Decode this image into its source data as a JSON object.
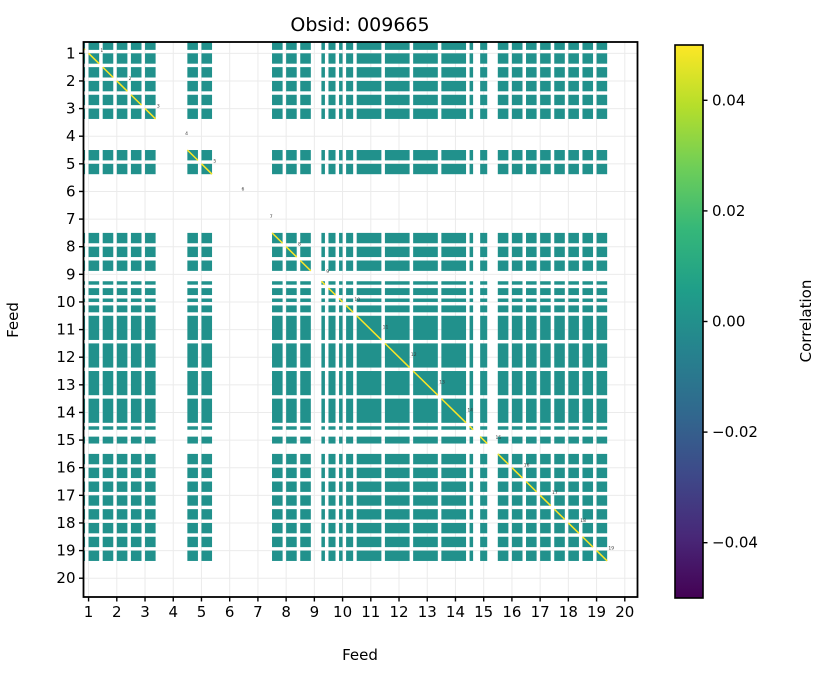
{
  "title": "Obsid: 009665",
  "xlabel": "Feed",
  "ylabel": "Feed",
  "x_tick_labels": [
    "1",
    "2",
    "3",
    "4",
    "5",
    "6",
    "7",
    "8",
    "9",
    "10",
    "11",
    "12",
    "13",
    "14",
    "15",
    "16",
    "17",
    "18",
    "19",
    "20"
  ],
  "y_tick_labels": [
    "1",
    "2",
    "3",
    "4",
    "5",
    "6",
    "7",
    "8",
    "9",
    "10",
    "11",
    "12",
    "13",
    "14",
    "15",
    "16",
    "17",
    "18",
    "19",
    "20"
  ],
  "colorbar": {
    "label": "Correlation",
    "vmin": -0.05,
    "vmax": 0.05,
    "tick_labels": [
      "0.04",
      "0.02",
      "0.00",
      "−0.02",
      "−0.04"
    ],
    "tick_values": [
      0.04,
      0.02,
      0.0,
      -0.02,
      -0.04
    ],
    "colormap": "viridis",
    "gradient_stops": [
      "#440154",
      "#482878",
      "#3e4989",
      "#31688e",
      "#26828e",
      "#1f9e89",
      "#35b779",
      "#6ece58",
      "#b5de2b",
      "#fde725"
    ]
  },
  "colors": {
    "cell": "#21918c",
    "diagonal": "#fde725",
    "grid": "#ebebeb",
    "spine": "#000000",
    "annotation": "#3a3a3a",
    "background": "#ffffff"
  },
  "chart_data": {
    "type": "heatmap",
    "title": "Obsid: 009665",
    "xlabel": "Feed",
    "ylabel": "Feed",
    "n_feeds": 20,
    "slots_per_feed": 8,
    "feed_annotations": [
      "1",
      "2",
      "3",
      "4",
      "5",
      "6",
      "7",
      "8",
      "9",
      "10",
      "11",
      "12",
      "13",
      "14",
      "15",
      "16",
      "17",
      "18",
      "19",
      "20"
    ],
    "feed_slot_masks": [
      [
        1,
        1,
        1,
        0,
        1,
        1,
        1,
        0
      ],
      [
        1,
        1,
        1,
        0,
        1,
        1,
        1,
        0
      ],
      [
        1,
        1,
        1,
        0,
        1,
        1,
        1,
        0
      ],
      [
        0,
        0,
        0,
        0,
        0,
        0,
        0,
        0
      ],
      [
        1,
        1,
        1,
        0,
        1,
        1,
        1,
        0
      ],
      [
        0,
        0,
        0,
        0,
        0,
        0,
        0,
        0
      ],
      [
        0,
        0,
        0,
        0,
        0,
        0,
        0,
        0
      ],
      [
        1,
        1,
        1,
        0,
        1,
        1,
        1,
        0
      ],
      [
        1,
        1,
        1,
        0,
        0,
        0,
        1,
        0
      ],
      [
        1,
        1,
        0,
        1,
        0,
        1,
        1,
        0
      ],
      [
        1,
        1,
        1,
        1,
        1,
        1,
        1,
        0
      ],
      [
        1,
        1,
        1,
        1,
        1,
        1,
        1,
        0
      ],
      [
        1,
        1,
        1,
        1,
        1,
        1,
        1,
        0
      ],
      [
        1,
        1,
        1,
        1,
        1,
        1,
        1,
        0
      ],
      [
        1,
        0,
        0,
        1,
        1,
        0,
        0,
        0
      ],
      [
        1,
        1,
        1,
        0,
        1,
        1,
        1,
        0
      ],
      [
        1,
        1,
        1,
        0,
        1,
        1,
        1,
        0
      ],
      [
        1,
        1,
        1,
        0,
        1,
        1,
        1,
        0
      ],
      [
        1,
        1,
        1,
        0,
        1,
        1,
        1,
        0
      ],
      [
        0,
        0,
        0,
        0,
        0,
        0,
        0,
        0
      ]
    ],
    "empty_feeds": [
      4,
      6,
      7,
      20
    ],
    "offdiagonal_correlation": 0.0,
    "diagonal_correlation": 1.0,
    "vmin": -0.05,
    "vmax": 0.05,
    "xlim": [
      0.82,
      20.45
    ],
    "ylim": [
      0.59,
      20.68
    ],
    "grid": true,
    "legend_position": "colorbar-right"
  }
}
